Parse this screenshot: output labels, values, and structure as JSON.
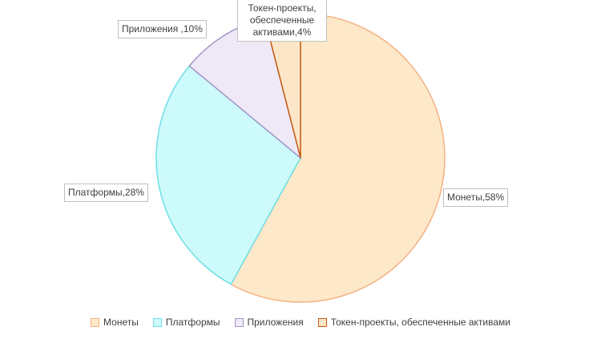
{
  "chart_data": {
    "type": "pie",
    "categories": [
      "Монеты",
      "Платформы",
      "Приложения",
      "Токен-проекты, обеспеченные активами"
    ],
    "values": [
      58,
      28,
      10,
      4
    ],
    "value_labels": [
      "Монеты,58%",
      "Платформы,28%",
      "Приложения ,10%",
      "Токен-проекты, обеспеченные активами,4%"
    ],
    "colors": [
      "#fde9c9",
      "#cdfafb",
      "#efe9f7",
      "#fde6c8"
    ],
    "edge_colors": [
      "#f4b183",
      "#6fdfe6",
      "#a396c6",
      "#c55a11"
    ],
    "legend": "bottom"
  }
}
